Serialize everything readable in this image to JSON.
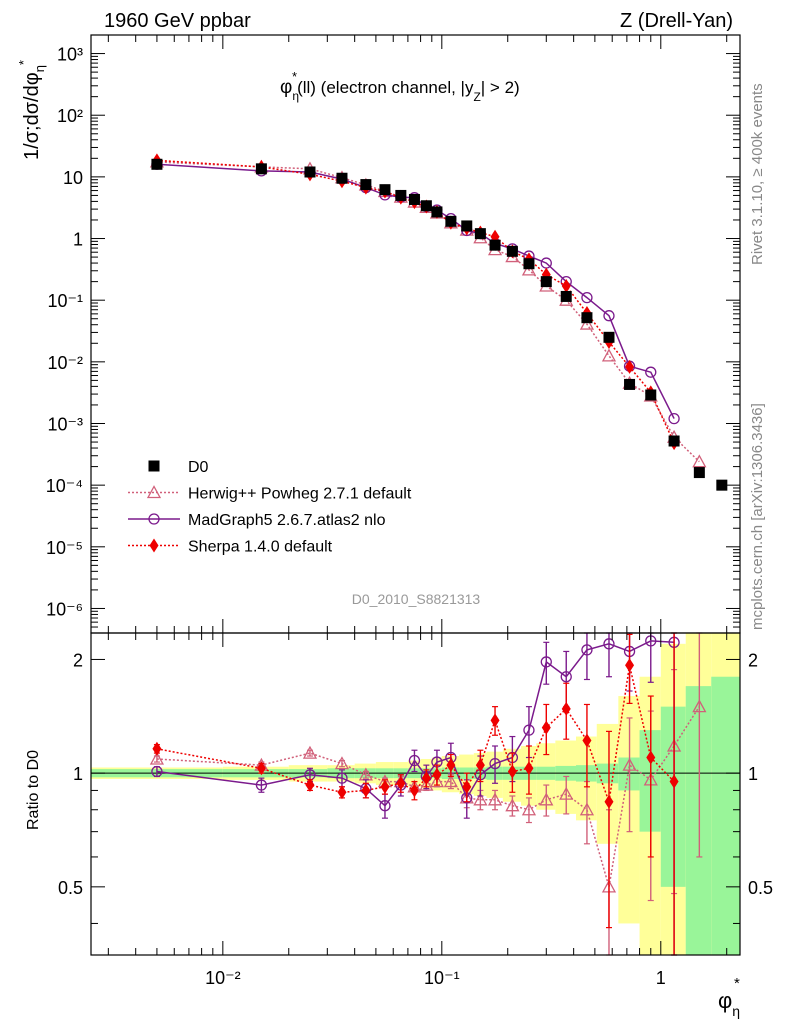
{
  "header": {
    "left": "1960 GeV ppbar",
    "right": "Z (Drell-Yan)",
    "side_top": "Rivet 3.1.10, ≥ 400k events",
    "side_bottom": "mcplots.cern.ch [arXiv:1306.3436]"
  },
  "plot_title": {
    "phi": "φ",
    "eta": "η",
    "star": "*",
    "rest": "(ll) (electron channel, |y",
    "sub_z": "Z",
    "end": "| > 2)"
  },
  "watermark": "D0_2010_S8821313",
  "ylabel_main": "1/σ;dσ/dφ",
  "ylabel_ratio": "Ratio to D0",
  "xlabel": "φ",
  "xlabel_sub": "η",
  "xlabel_sup": "*",
  "colors": {
    "data": "#000000",
    "herwig": "#d1607a",
    "madgraph": "#7b1a8c",
    "sherpa": "#ee0000",
    "band_inner": "#99f599",
    "band_outer": "#ffff99"
  },
  "legend": [
    {
      "key": "data",
      "label": "D0"
    },
    {
      "key": "herwig",
      "label": "Herwig++ Powheg 2.7.1 default"
    },
    {
      "key": "madgraph",
      "label": "MadGraph5 2.6.7.atlas2 nlo"
    },
    {
      "key": "sherpa",
      "label": "Sherpa 1.4.0 default"
    }
  ],
  "chart_data": {
    "type": "scatter",
    "title": "φ*η(ll) (electron channel, |yZ| > 2)",
    "xscale": "log",
    "yscale": "log",
    "xlim": [
      0.0025,
      2.3
    ],
    "ylim": [
      4e-07,
      2000
    ],
    "ratio_ylim": [
      0.33,
      2.35
    ],
    "x_tick_labels": [
      "10⁻²",
      "10⁻¹",
      "1"
    ],
    "y_tick_labels": [
      "10⁻⁶",
      "10⁻⁵",
      "10⁻⁴",
      "10⁻³",
      "10⁻²",
      "10⁻¹",
      "1",
      "10",
      "10²",
      "10³"
    ],
    "ratio_tick_labels": [
      "0.5",
      "1",
      "2"
    ],
    "x": [
      0.005,
      0.015,
      0.025,
      0.035,
      0.045,
      0.055,
      0.065,
      0.075,
      0.085,
      0.095,
      0.11,
      0.13,
      0.15,
      0.175,
      0.21,
      0.25,
      0.3,
      0.37,
      0.46,
      0.58,
      0.72,
      0.9,
      1.15,
      1.5,
      1.9
    ],
    "series": [
      {
        "name": "D0",
        "key": "data",
        "marker": "square",
        "values": [
          16,
          13.5,
          12,
          9.5,
          7.5,
          6.2,
          5,
          4.3,
          3.4,
          2.7,
          1.9,
          1.6,
          1.2,
          0.78,
          0.62,
          0.39,
          0.2,
          0.115,
          0.052,
          0.025,
          0.0043,
          0.0029,
          0.00052,
          0.00016,
          0.0001
        ],
        "ratio": [
          1,
          1,
          1,
          1,
          1,
          1,
          1,
          1,
          1,
          1,
          1,
          1,
          1,
          1,
          1,
          1,
          1,
          1,
          1,
          1,
          1,
          1,
          1,
          1,
          1
        ]
      },
      {
        "name": "Herwig++ Powheg 2.7.1 default",
        "key": "herwig",
        "marker": "triangle",
        "values": [
          17.5,
          14.5,
          13.5,
          9.7,
          7.4,
          5.8,
          4.7,
          3.9,
          3.2,
          2.6,
          1.8,
          1.37,
          1.03,
          0.66,
          0.51,
          0.31,
          0.17,
          0.1,
          0.041,
          0.0125,
          0.0045,
          0.0028,
          0.0006,
          0.00024,
          null
        ],
        "ratio": [
          1.09,
          1.05,
          1.13,
          1.06,
          0.99,
          0.95,
          0.95,
          0.92,
          0.93,
          0.95,
          0.95,
          0.86,
          0.85,
          0.85,
          0.82,
          0.8,
          0.85,
          0.88,
          0.8,
          0.5,
          1.05,
          0.96,
          1.18,
          1.5,
          null
        ],
        "err": [
          0.02,
          0.02,
          0.02,
          0.02,
          0.02,
          0.02,
          0.03,
          0.03,
          0.03,
          0.03,
          0.04,
          0.05,
          0.05,
          0.05,
          0.05,
          0.06,
          0.08,
          0.1,
          0.15,
          0.3,
          0.35,
          0.5,
          0.7,
          0.9,
          null
        ]
      },
      {
        "name": "MadGraph5 2.6.7.atlas2 nlo",
        "key": "madgraph",
        "marker": "circle",
        "values": [
          16,
          12.5,
          12,
          9.2,
          6.7,
          5.1,
          4.7,
          4.6,
          3.3,
          2.9,
          2.1,
          1.35,
          1.2,
          0.83,
          0.68,
          0.52,
          0.4,
          0.2,
          0.11,
          0.056,
          0.0085,
          0.0068,
          0.0012,
          null,
          null
        ],
        "ratio": [
          1.01,
          0.93,
          0.99,
          0.97,
          0.91,
          0.82,
          0.93,
          1.08,
          0.98,
          1.07,
          1.1,
          0.86,
          0.99,
          1.06,
          1.1,
          1.3,
          1.97,
          1.8,
          2.12,
          2.2,
          2.1,
          2.24,
          2.22,
          null,
          null
        ],
        "err": [
          0.03,
          0.04,
          0.04,
          0.05,
          0.05,
          0.06,
          0.06,
          0.07,
          0.07,
          0.08,
          0.1,
          0.1,
          0.12,
          0.12,
          0.15,
          0.2,
          0.25,
          0.3,
          0.35,
          0.4,
          0.45,
          0.5,
          2,
          null,
          null
        ]
      },
      {
        "name": "Sherpa 1.4.0 default",
        "key": "sherpa",
        "marker": "diamond",
        "values": [
          18.5,
          14.5,
          11,
          8.5,
          6.7,
          5.8,
          4.6,
          3.9,
          3.3,
          2.7,
          1.8,
          1.46,
          1.25,
          1.07,
          0.62,
          0.46,
          0.26,
          0.17,
          0.062,
          0.021,
          0.0083,
          0.0032,
          0.00048,
          null,
          null
        ],
        "ratio": [
          1.16,
          1.03,
          0.93,
          0.89,
          0.9,
          0.92,
          0.94,
          0.9,
          0.97,
          0.99,
          1.05,
          0.92,
          1.05,
          1.38,
          1.01,
          1.03,
          1.32,
          1.48,
          1.22,
          0.84,
          1.93,
          1.1,
          0.95,
          null,
          null
        ],
        "err": [
          0.03,
          0.03,
          0.03,
          0.03,
          0.04,
          0.04,
          0.05,
          0.05,
          0.05,
          0.06,
          0.07,
          0.08,
          0.1,
          0.12,
          0.12,
          0.15,
          0.2,
          0.25,
          0.3,
          0.45,
          0.4,
          0.5,
          1.5,
          null,
          null
        ]
      }
    ],
    "bands": {
      "edges": [
        0.0025,
        0.01,
        0.02,
        0.03,
        0.04,
        0.05,
        0.06,
        0.07,
        0.08,
        0.09,
        0.1,
        0.12,
        0.14,
        0.16,
        0.19,
        0.23,
        0.27,
        0.33,
        0.41,
        0.51,
        0.64,
        0.8,
        1.0,
        1.3,
        1.7,
        2.3
      ],
      "inner": [
        0.025,
        0.025,
        0.025,
        0.03,
        0.03,
        0.03,
        0.03,
        0.03,
        0.03,
        0.03,
        0.035,
        0.035,
        0.035,
        0.04,
        0.04,
        0.04,
        0.04,
        0.045,
        0.05,
        0.06,
        0.1,
        0.3,
        0.5,
        0.7,
        0.8
      ],
      "outer": [
        0.035,
        0.04,
        0.05,
        0.05,
        0.06,
        0.07,
        0.07,
        0.08,
        0.09,
        0.1,
        0.11,
        0.12,
        0.13,
        0.14,
        0.16,
        0.18,
        0.2,
        0.22,
        0.25,
        0.35,
        0.6,
        0.8,
        1.2,
        1.4,
        1.5
      ]
    }
  }
}
